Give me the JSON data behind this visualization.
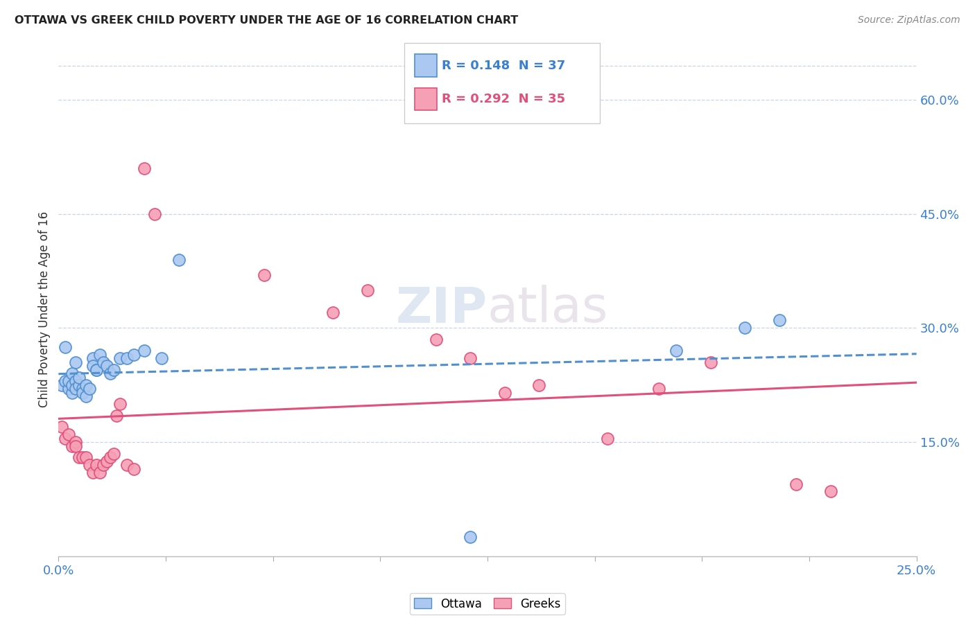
{
  "title": "OTTAWA VS GREEK CHILD POVERTY UNDER THE AGE OF 16 CORRELATION CHART",
  "source": "Source: ZipAtlas.com",
  "ylabel": "Child Poverty Under the Age of 16",
  "y_ticks": [
    0.15,
    0.3,
    0.45,
    0.6
  ],
  "y_tick_labels": [
    "15.0%",
    "30.0%",
    "45.0%",
    "60.0%"
  ],
  "x_min": 0.0,
  "x_max": 0.25,
  "y_min": 0.0,
  "y_max": 0.65,
  "ottawa_R": 0.148,
  "ottawa_N": 37,
  "greeks_R": 0.292,
  "greeks_N": 35,
  "ottawa_color": "#aac8f0",
  "greeks_color": "#f5a0b5",
  "ottawa_line_color": "#5090d0",
  "greeks_line_color": "#e0507a",
  "watermark": "ZIPatlas",
  "ottawa_x": [
    0.001,
    0.002,
    0.002,
    0.003,
    0.003,
    0.004,
    0.004,
    0.004,
    0.005,
    0.005,
    0.005,
    0.006,
    0.006,
    0.007,
    0.007,
    0.008,
    0.008,
    0.009,
    0.01,
    0.01,
    0.011,
    0.011,
    0.012,
    0.013,
    0.014,
    0.015,
    0.016,
    0.018,
    0.02,
    0.022,
    0.025,
    0.03,
    0.035,
    0.12,
    0.18,
    0.2,
    0.21
  ],
  "ottawa_y": [
    0.225,
    0.23,
    0.275,
    0.22,
    0.23,
    0.24,
    0.215,
    0.225,
    0.255,
    0.23,
    0.22,
    0.225,
    0.235,
    0.22,
    0.215,
    0.21,
    0.225,
    0.22,
    0.26,
    0.25,
    0.245,
    0.245,
    0.265,
    0.255,
    0.25,
    0.24,
    0.245,
    0.26,
    0.26,
    0.265,
    0.27,
    0.26,
    0.39,
    0.025,
    0.27,
    0.3,
    0.31
  ],
  "greeks_x": [
    0.001,
    0.002,
    0.003,
    0.004,
    0.005,
    0.005,
    0.006,
    0.007,
    0.008,
    0.009,
    0.01,
    0.011,
    0.012,
    0.013,
    0.014,
    0.015,
    0.016,
    0.017,
    0.018,
    0.02,
    0.022,
    0.025,
    0.028,
    0.06,
    0.08,
    0.09,
    0.11,
    0.12,
    0.13,
    0.14,
    0.16,
    0.175,
    0.19,
    0.215,
    0.225
  ],
  "greeks_y": [
    0.17,
    0.155,
    0.16,
    0.145,
    0.15,
    0.145,
    0.13,
    0.13,
    0.13,
    0.12,
    0.11,
    0.12,
    0.11,
    0.12,
    0.125,
    0.13,
    0.135,
    0.185,
    0.2,
    0.12,
    0.115,
    0.51,
    0.45,
    0.37,
    0.32,
    0.35,
    0.285,
    0.26,
    0.215,
    0.225,
    0.155,
    0.22,
    0.255,
    0.095,
    0.085
  ]
}
